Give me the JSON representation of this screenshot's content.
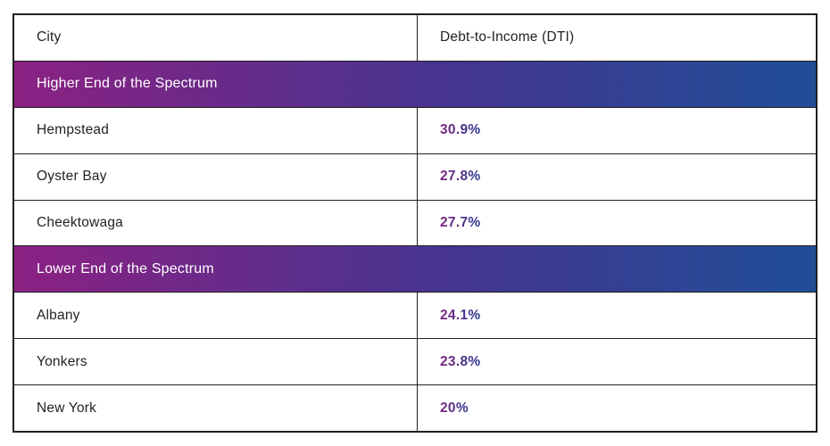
{
  "table": {
    "columns": [
      {
        "label": "City"
      },
      {
        "label": "Debt-to-Income (DTI)"
      }
    ]
  },
  "chart_data": {
    "type": "table",
    "columns": [
      "City",
      "Debt-to-Income (DTI)"
    ],
    "sections": [
      {
        "label": "Higher End of the Spectrum",
        "rows": [
          {
            "city": "Hempstead",
            "dti": "30.9%",
            "dti_value": 30.9
          },
          {
            "city": "Oyster Bay",
            "dti": "27.8%",
            "dti_value": 27.8
          },
          {
            "city": "Cheektowaga",
            "dti": "27.7%",
            "dti_value": 27.7
          }
        ]
      },
      {
        "label": "Lower End of the Spectrum",
        "rows": [
          {
            "city": "Albany",
            "dti": "24.1%",
            "dti_value": 24.1
          },
          {
            "city": "Yonkers",
            "dti": "23.8%",
            "dti_value": 23.8
          },
          {
            "city": "New York",
            "dti": "20%",
            "dti_value": 20.0
          }
        ]
      }
    ]
  },
  "colors": {
    "band_gradient_start": "#8b2183",
    "band_gradient_mid": "#443590",
    "band_gradient_end": "#1f4e96",
    "value_gradient_start": "#7e2581",
    "value_gradient_end": "#2b3990",
    "border": "#231f20",
    "text": "#231f20",
    "band_text": "#ffffff",
    "background": "#ffffff"
  }
}
